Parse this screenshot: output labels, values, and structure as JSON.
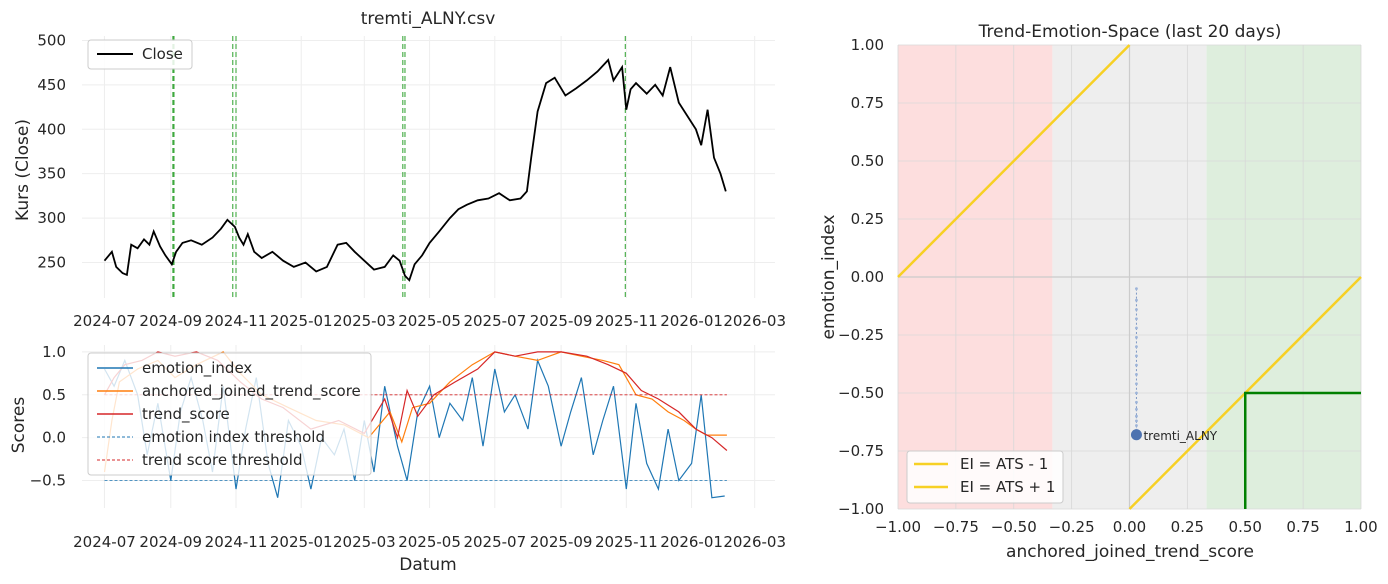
{
  "chart_data": [
    {
      "type": "line",
      "title": "tremti_ALNY.csv",
      "xlabel": "",
      "ylabel": "Kurs (Close)",
      "ylim": [
        210,
        505
      ],
      "yticks": [
        250,
        300,
        350,
        400,
        450,
        500
      ],
      "xticks": [
        "2024-07",
        "2024-09",
        "2024-11",
        "2025-01",
        "2025-03",
        "2025-05",
        "2025-07",
        "2025-09",
        "2025-11",
        "2026-01",
        "2026-03"
      ],
      "xrange": [
        "2024-06-10",
        "2026-03-20"
      ],
      "grid": true,
      "legend": {
        "placement": "top-left",
        "entries": [
          "Close"
        ]
      },
      "series": [
        {
          "name": "Close",
          "color": "#000000",
          "x": [
            "2024-07-01",
            "2024-07-08",
            "2024-07-12",
            "2024-07-18",
            "2024-07-22",
            "2024-07-26",
            "2024-08-01",
            "2024-08-07",
            "2024-08-12",
            "2024-08-16",
            "2024-08-22",
            "2024-08-27",
            "2024-09-02",
            "2024-09-06",
            "2024-09-12",
            "2024-09-20",
            "2024-09-30",
            "2024-10-10",
            "2024-10-18",
            "2024-10-24",
            "2024-10-31",
            "2024-11-04",
            "2024-11-08",
            "2024-11-12",
            "2024-11-18",
            "2024-11-25",
            "2024-12-05",
            "2024-12-15",
            "2024-12-25",
            "2025-01-05",
            "2025-01-15",
            "2025-01-25",
            "2025-02-04",
            "2025-02-12",
            "2025-02-20",
            "2025-03-01",
            "2025-03-10",
            "2025-03-20",
            "2025-03-28",
            "2025-04-03",
            "2025-04-08",
            "2025-04-12",
            "2025-04-17",
            "2025-04-24",
            "2025-05-01",
            "2025-05-10",
            "2025-05-20",
            "2025-05-28",
            "2025-06-05",
            "2025-06-15",
            "2025-06-25",
            "2025-07-05",
            "2025-07-15",
            "2025-07-25",
            "2025-07-31",
            "2025-08-04",
            "2025-08-10",
            "2025-08-18",
            "2025-08-26",
            "2025-09-05",
            "2025-09-15",
            "2025-09-25",
            "2025-10-05",
            "2025-10-15",
            "2025-10-20",
            "2025-10-28",
            "2025-11-01",
            "2025-11-05",
            "2025-11-10",
            "2025-11-20",
            "2025-11-28",
            "2025-12-05",
            "2025-12-12",
            "2025-12-20",
            "2025-12-28",
            "2026-01-05",
            "2026-01-10",
            "2026-01-16",
            "2026-01-22",
            "2026-01-28",
            "2026-02-02"
          ],
          "values": [
            252,
            262,
            245,
            238,
            236,
            270,
            266,
            276,
            270,
            285,
            268,
            258,
            248,
            262,
            272,
            275,
            270,
            278,
            288,
            298,
            290,
            278,
            270,
            282,
            262,
            255,
            262,
            252,
            245,
            250,
            240,
            245,
            270,
            272,
            262,
            252,
            242,
            245,
            258,
            252,
            235,
            230,
            248,
            258,
            272,
            285,
            300,
            310,
            315,
            320,
            322,
            328,
            320,
            322,
            330,
            368,
            420,
            452,
            458,
            438,
            446,
            455,
            465,
            478,
            455,
            470,
            422,
            445,
            452,
            440,
            450,
            438,
            470,
            430,
            415,
            400,
            382,
            422,
            368,
            350,
            330
          ]
        }
      ],
      "events": [
        "2024-09-03",
        "2024-09-04",
        "2024-10-29",
        "2024-11-01",
        "2025-04-06",
        "2025-04-08",
        "2025-10-31"
      ]
    },
    {
      "type": "line",
      "title": "",
      "xlabel": "Datum",
      "ylabel": "Scores",
      "ylim": [
        -0.82,
        1.08
      ],
      "yticks": [
        -0.5,
        0.0,
        0.5,
        1.0
      ],
      "xticks": [
        "2024-07",
        "2024-09",
        "2024-11",
        "2025-01",
        "2025-03",
        "2025-05",
        "2025-07",
        "2025-09",
        "2025-11",
        "2026-01",
        "2026-03"
      ],
      "grid": true,
      "legend": {
        "placement": "top-left",
        "entries": [
          "emotion_index",
          "anchored_joined_trend_score",
          "trend_score",
          "emotion index threshold",
          "trend score threshold"
        ]
      },
      "series": [
        {
          "name": "emotion_index",
          "color": "#1f77b4",
          "x": [
            "2024-07-01",
            "2024-07-10",
            "2024-07-20",
            "2024-08-01",
            "2024-08-10",
            "2024-08-20",
            "2024-09-01",
            "2024-09-10",
            "2024-09-20",
            "2024-10-01",
            "2024-10-10",
            "2024-10-20",
            "2024-11-01",
            "2024-11-10",
            "2024-11-20",
            "2024-12-01",
            "2024-12-10",
            "2024-12-20",
            "2025-01-01",
            "2025-01-10",
            "2025-01-20",
            "2025-02-01",
            "2025-02-10",
            "2025-02-20",
            "2025-03-01",
            "2025-03-10",
            "2025-03-20",
            "2025-04-01",
            "2025-04-10",
            "2025-04-20",
            "2025-05-01",
            "2025-05-10",
            "2025-05-20",
            "2025-06-01",
            "2025-06-10",
            "2025-06-20",
            "2025-07-01",
            "2025-07-10",
            "2025-07-20",
            "2025-08-01",
            "2025-08-10",
            "2025-08-20",
            "2025-09-01",
            "2025-09-10",
            "2025-09-20",
            "2025-10-01",
            "2025-10-10",
            "2025-10-20",
            "2025-11-01",
            "2025-11-10",
            "2025-11-20",
            "2025-12-01",
            "2025-12-10",
            "2025-12-20",
            "2026-01-01",
            "2026-01-10",
            "2026-01-20",
            "2026-02-01"
          ],
          "values": [
            0.8,
            0.6,
            0.9,
            0.5,
            -0.2,
            0.4,
            -0.5,
            0.3,
            0.7,
            0.2,
            -0.4,
            0.6,
            -0.6,
            0.1,
            0.7,
            -0.3,
            -0.7,
            0.2,
            -0.1,
            -0.6,
            0.0,
            -0.2,
            0.1,
            -0.5,
            0.2,
            -0.4,
            0.6,
            -0.1,
            -0.5,
            0.3,
            0.6,
            0.0,
            0.4,
            0.2,
            0.7,
            -0.1,
            0.8,
            0.3,
            0.5,
            0.1,
            0.9,
            0.6,
            -0.1,
            0.3,
            0.7,
            -0.2,
            0.2,
            0.6,
            -0.6,
            0.4,
            -0.3,
            -0.6,
            0.1,
            -0.5,
            -0.3,
            0.5,
            -0.7,
            -0.68
          ]
        },
        {
          "name": "anchored_joined_trend_score",
          "color": "#ff7f0e",
          "x": [
            "2024-07-01",
            "2024-07-08",
            "2024-07-15",
            "2024-08-01",
            "2024-08-20",
            "2024-09-05",
            "2024-09-25",
            "2024-10-20",
            "2024-11-05",
            "2024-11-25",
            "2024-12-20",
            "2025-01-15",
            "2025-02-10",
            "2025-03-05",
            "2025-03-25",
            "2025-04-05",
            "2025-04-15",
            "2025-05-01",
            "2025-05-20",
            "2025-06-10",
            "2025-07-01",
            "2025-07-20",
            "2025-08-10",
            "2025-09-01",
            "2025-09-20",
            "2025-10-10",
            "2025-10-25",
            "2025-11-10",
            "2025-11-25",
            "2025-12-10",
            "2025-12-25",
            "2026-01-05",
            "2026-01-15",
            "2026-02-03"
          ],
          "values": [
            -0.4,
            0.2,
            0.65,
            0.8,
            0.9,
            0.7,
            0.85,
            1.0,
            0.75,
            0.5,
            0.35,
            0.2,
            0.15,
            0.0,
            0.3,
            -0.05,
            0.35,
            0.4,
            0.65,
            0.85,
            1.0,
            0.95,
            0.9,
            1.0,
            0.95,
            0.9,
            0.85,
            0.5,
            0.45,
            0.3,
            0.2,
            0.1,
            0.03,
            0.03
          ]
        },
        {
          "name": "trend_score",
          "color": "#d62728",
          "x": [
            "2024-07-01",
            "2024-07-10",
            "2024-07-20",
            "2024-08-05",
            "2024-08-20",
            "2024-09-05",
            "2024-09-25",
            "2024-10-15",
            "2024-11-05",
            "2024-11-25",
            "2024-12-15",
            "2025-01-10",
            "2025-02-05",
            "2025-03-01",
            "2025-03-20",
            "2025-04-01",
            "2025-04-10",
            "2025-04-20",
            "2025-05-05",
            "2025-05-25",
            "2025-06-15",
            "2025-07-01",
            "2025-07-20",
            "2025-08-10",
            "2025-09-01",
            "2025-09-25",
            "2025-10-15",
            "2025-11-01",
            "2025-11-15",
            "2025-12-01",
            "2025-12-20",
            "2026-01-05",
            "2026-01-20",
            "2026-02-03"
          ],
          "values": [
            0.5,
            0.7,
            0.85,
            0.9,
            1.0,
            0.95,
            1.0,
            0.9,
            0.65,
            0.45,
            0.35,
            0.1,
            0.2,
            0.05,
            0.45,
            0.0,
            0.55,
            0.25,
            0.5,
            0.65,
            0.8,
            1.0,
            0.95,
            1.0,
            1.0,
            0.95,
            0.85,
            0.75,
            0.55,
            0.45,
            0.3,
            0.1,
            0.0,
            -0.15
          ]
        },
        {
          "name": "emotion index threshold",
          "color": "#1f77b4",
          "dashed": true,
          "x": [
            "2024-07-01",
            "2026-02-03"
          ],
          "values": [
            -0.5,
            -0.5
          ]
        },
        {
          "name": "trend score threshold",
          "color": "#d62728",
          "dashed": true,
          "x": [
            "2024-07-01",
            "2026-02-03"
          ],
          "values": [
            0.5,
            0.5
          ]
        }
      ]
    },
    {
      "type": "scatter",
      "title": "Trend-Emotion-Space (last 20 days)",
      "xlabel": "anchored_joined_trend_score",
      "ylabel": "emotion_index",
      "xlim": [
        -1.0,
        1.0
      ],
      "ylim": [
        -1.0,
        1.0
      ],
      "xticks": [
        "−1.00",
        "−0.75",
        "−0.50",
        "−0.25",
        "0.00",
        "0.25",
        "0.50",
        "0.75",
        "1.00"
      ],
      "yticks": [
        "1.00",
        "0.75",
        "0.50",
        "0.25",
        "0.00",
        "−0.25",
        "−0.50",
        "−0.75",
        "−1.00"
      ],
      "grid": true,
      "regions": [
        {
          "x0": -1.0,
          "x1": -0.333,
          "color": "#fddede"
        },
        {
          "x0": -0.333,
          "x1": 0.333,
          "color": "#eeeeee"
        },
        {
          "x0": 0.333,
          "x1": 1.0,
          "color": "#deeedd"
        }
      ],
      "lines": [
        {
          "name": "EI = ATS - 1",
          "color": "#f7d024",
          "x": [
            0.0,
            1.0
          ],
          "y": [
            -1.0,
            0.0
          ]
        },
        {
          "name": "EI = ATS + 1",
          "color": "#f7d024",
          "x": [
            -1.0,
            0.0
          ],
          "y": [
            0.0,
            1.0
          ]
        }
      ],
      "green_box": {
        "x": 0.5,
        "y": -0.5,
        "color": "#008000"
      },
      "path": {
        "x": [
          0.03,
          0.03,
          0.03,
          0.03,
          0.03,
          0.03,
          0.03,
          0.03,
          0.03,
          0.03,
          0.03,
          0.03,
          0.03,
          0.03,
          0.03,
          0.03,
          0.03,
          0.03,
          0.03,
          0.03
        ],
        "y": [
          -0.05,
          -0.1,
          -0.14,
          -0.18,
          -0.22,
          -0.26,
          -0.3,
          -0.34,
          -0.38,
          -0.42,
          -0.46,
          -0.5,
          -0.54,
          -0.57,
          -0.6,
          -0.62,
          -0.64,
          -0.66,
          -0.67,
          -0.68
        ]
      },
      "point": {
        "label": "tremti_ALNY",
        "x": 0.03,
        "y": -0.68,
        "color": "#4c72b0"
      },
      "legend": {
        "placement": "bottom-left",
        "entries": [
          "EI = ATS - 1",
          "EI = ATS + 1"
        ]
      }
    }
  ]
}
